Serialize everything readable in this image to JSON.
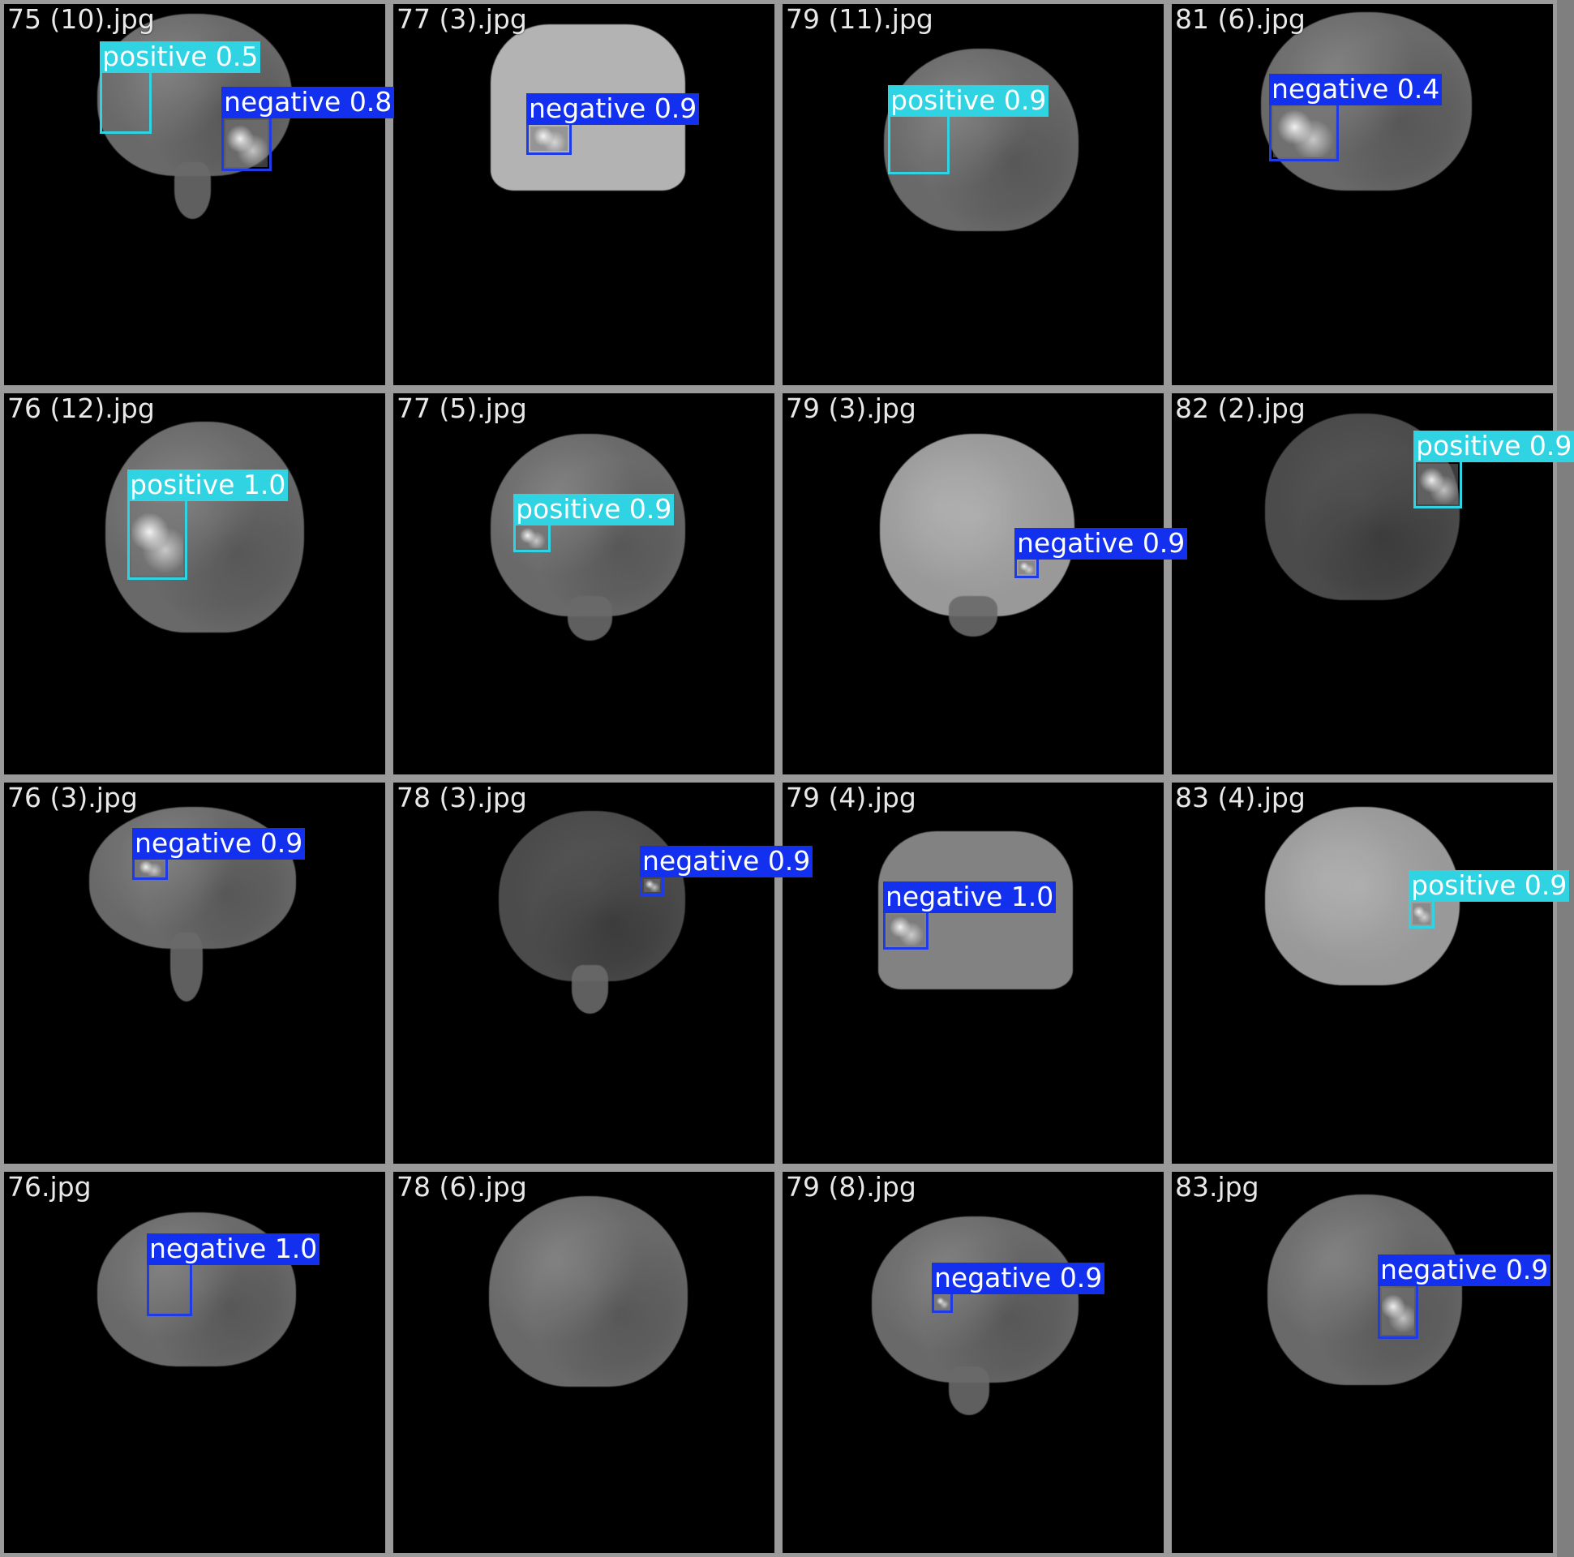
{
  "colors": {
    "positive": "#2fd3e2",
    "negative": "#1230ee",
    "tile_border": "#9a9a9a",
    "background": "#7f7f7f"
  },
  "tiles": [
    {
      "filename": "75 (10).jpg",
      "detections": [
        {
          "label": "positive 0.5",
          "class": "positive"
        },
        {
          "label": "negative 0.8",
          "class": "negative"
        }
      ]
    },
    {
      "filename": "77 (3).jpg",
      "detections": [
        {
          "label": "negative 0.9",
          "class": "negative"
        }
      ]
    },
    {
      "filename": "79 (11).jpg",
      "detections": [
        {
          "label": "positive 0.9",
          "class": "positive"
        }
      ]
    },
    {
      "filename": "81 (6).jpg",
      "detections": [
        {
          "label": "negative 0.4",
          "class": "negative"
        }
      ]
    },
    {
      "filename": "76 (12).jpg",
      "detections": [
        {
          "label": "positive 1.0",
          "class": "positive"
        }
      ]
    },
    {
      "filename": "77 (5).jpg",
      "detections": [
        {
          "label": "positive 0.9",
          "class": "positive"
        }
      ]
    },
    {
      "filename": "79 (3).jpg",
      "detections": [
        {
          "label": "negative 0.9",
          "class": "negative"
        }
      ]
    },
    {
      "filename": "82 (2).jpg",
      "detections": [
        {
          "label": "positive 0.9",
          "class": "positive"
        }
      ]
    },
    {
      "filename": "76 (3).jpg",
      "detections": [
        {
          "label": "negative 0.9",
          "class": "negative"
        }
      ]
    },
    {
      "filename": "78 (3).jpg",
      "detections": [
        {
          "label": "negative 0.9",
          "class": "negative"
        }
      ]
    },
    {
      "filename": "79 (4).jpg",
      "detections": [
        {
          "label": "negative 1.0",
          "class": "negative"
        }
      ]
    },
    {
      "filename": "83 (4).jpg",
      "detections": [
        {
          "label": "positive 0.9",
          "class": "positive"
        }
      ]
    },
    {
      "filename": "76.jpg",
      "detections": [
        {
          "label": "negative 1.0",
          "class": "negative"
        }
      ]
    },
    {
      "filename": "78 (6).jpg",
      "detections": []
    },
    {
      "filename": "79 (8).jpg",
      "detections": [
        {
          "label": "negative 0.9",
          "class": "negative"
        }
      ]
    },
    {
      "filename": "83.jpg",
      "detections": [
        {
          "label": "negative 0.9",
          "class": "negative"
        }
      ]
    }
  ]
}
